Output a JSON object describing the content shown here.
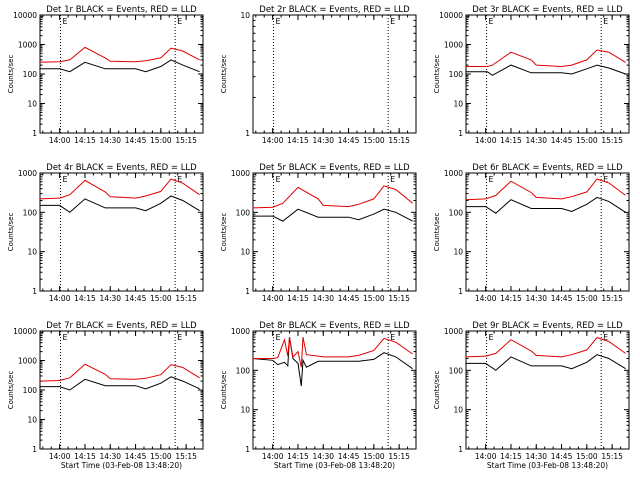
{
  "colors": {
    "events": "#000000",
    "lld": "#e00000",
    "axis": "#000000",
    "background": "#ffffff"
  },
  "chart_data": [
    {
      "type": "line",
      "title": "Det 1r BLACK = Events, RED = LLD",
      "ylabel": "Counts/sec",
      "xlabel": "",
      "yscale": "log",
      "ylim": [
        1,
        10000
      ],
      "yticks": [
        "1",
        "10",
        "100",
        "1000",
        "10000"
      ],
      "xticks": [
        "14:00",
        "14:15",
        "14:30",
        "14:45",
        "15:00",
        "15:15"
      ],
      "markers": [
        {
          "label": "E"
        },
        {
          "label": "E"
        }
      ],
      "series": [
        {
          "name": "Events",
          "x": [
            "13:48",
            "14:00",
            "14:06",
            "14:15",
            "14:27",
            "14:30",
            "14:45",
            "14:51",
            "15:00",
            "15:06",
            "15:13",
            "15:23"
          ],
          "y": [
            150,
            150,
            120,
            250,
            150,
            150,
            150,
            120,
            180,
            300,
            200,
            120
          ]
        },
        {
          "name": "LLD",
          "x": [
            "13:48",
            "14:00",
            "14:06",
            "14:15",
            "14:27",
            "14:30",
            "14:45",
            "14:51",
            "15:00",
            "15:06",
            "15:13",
            "15:23"
          ],
          "y": [
            250,
            260,
            300,
            800,
            350,
            270,
            260,
            280,
            350,
            750,
            600,
            300
          ]
        }
      ]
    },
    {
      "type": "line",
      "title": "Det 2r BLACK = Events, RED = LLD",
      "ylabel": "Counts/sec",
      "xlabel": "",
      "yscale": "log",
      "ylim": [
        1,
        10
      ],
      "yticks": [
        "1",
        "10"
      ],
      "xticks": [
        "14:00",
        "14:15",
        "14:30",
        "14:45",
        "15:00",
        "15:15"
      ],
      "markers": [
        {
          "label": "E"
        },
        {
          "label": "E"
        }
      ],
      "series": []
    },
    {
      "type": "line",
      "title": "Det 3r BLACK = Events, RED = LLD",
      "ylabel": "Counts/sec",
      "xlabel": "",
      "yscale": "log",
      "ylim": [
        1,
        10000
      ],
      "yticks": [
        "1",
        "10",
        "100",
        "1000",
        "10000"
      ],
      "xticks": [
        "14:00",
        "14:15",
        "14:30",
        "14:45",
        "15:00",
        "15:15"
      ],
      "markers": [
        {
          "label": "E"
        },
        {
          "label": "E"
        }
      ],
      "series": [
        {
          "name": "Events",
          "x": [
            "13:48",
            "14:01",
            "14:04",
            "14:15",
            "14:27",
            "14:30",
            "14:45",
            "14:51",
            "15:00",
            "15:06",
            "15:13",
            "15:23"
          ],
          "y": [
            120,
            120,
            90,
            200,
            110,
            110,
            110,
            100,
            150,
            200,
            160,
            100
          ]
        },
        {
          "name": "LLD",
          "x": [
            "13:48",
            "14:01",
            "14:04",
            "14:15",
            "14:27",
            "14:30",
            "14:45",
            "14:51",
            "15:00",
            "15:06",
            "15:13",
            "15:23"
          ],
          "y": [
            180,
            180,
            200,
            550,
            300,
            200,
            180,
            200,
            300,
            650,
            550,
            250
          ]
        }
      ]
    },
    {
      "type": "line",
      "title": "Det 4r BLACK = Events, RED = LLD",
      "ylabel": "Counts/sec",
      "xlabel": "",
      "yscale": "log",
      "ylim": [
        1,
        1000
      ],
      "yticks": [
        "1",
        "10",
        "100",
        "1000"
      ],
      "xticks": [
        "14:00",
        "14:15",
        "14:30",
        "14:45",
        "15:00",
        "15:15"
      ],
      "markers": [
        {
          "label": "E"
        },
        {
          "label": "E"
        }
      ],
      "series": [
        {
          "name": "Events",
          "x": [
            "13:48",
            "14:00",
            "14:06",
            "14:15",
            "14:27",
            "14:30",
            "14:45",
            "14:51",
            "15:00",
            "15:06",
            "15:13",
            "15:23"
          ],
          "y": [
            150,
            150,
            100,
            220,
            130,
            130,
            130,
            110,
            170,
            260,
            200,
            110
          ]
        },
        {
          "name": "LLD",
          "x": [
            "13:48",
            "14:00",
            "14:06",
            "14:15",
            "14:27",
            "14:30",
            "14:45",
            "14:51",
            "15:00",
            "15:06",
            "15:13",
            "15:23"
          ],
          "y": [
            220,
            230,
            280,
            650,
            330,
            250,
            230,
            260,
            340,
            700,
            550,
            280
          ]
        }
      ]
    },
    {
      "type": "line",
      "title": "Det 5r BLACK = Events, RED = LLD",
      "ylabel": "Counts/sec",
      "xlabel": "",
      "yscale": "log",
      "ylim": [
        1,
        1000
      ],
      "yticks": [
        "1",
        "10",
        "100",
        "1000"
      ],
      "xticks": [
        "14:00",
        "14:15",
        "14:30",
        "14:45",
        "15:00",
        "15:15"
      ],
      "markers": [
        {
          "label": "E"
        },
        {
          "label": "E"
        }
      ],
      "series": [
        {
          "name": "Events",
          "x": [
            "13:48",
            "14:00",
            "14:06",
            "14:15",
            "14:27",
            "14:30",
            "14:45",
            "14:51",
            "15:00",
            "15:06",
            "15:13",
            "15:23"
          ],
          "y": [
            80,
            80,
            60,
            120,
            75,
            75,
            75,
            65,
            90,
            120,
            100,
            60
          ]
        },
        {
          "name": "LLD",
          "x": [
            "13:48",
            "14:00",
            "14:06",
            "14:15",
            "14:27",
            "14:30",
            "14:45",
            "14:51",
            "15:00",
            "15:06",
            "15:13",
            "15:23"
          ],
          "y": [
            130,
            135,
            170,
            430,
            220,
            150,
            140,
            160,
            220,
            470,
            380,
            170
          ]
        }
      ]
    },
    {
      "type": "line",
      "title": "Det 6r BLACK = Events, RED = LLD",
      "ylabel": "Counts/sec",
      "xlabel": "",
      "yscale": "log",
      "ylim": [
        1,
        1000
      ],
      "yticks": [
        "1",
        "10",
        "100",
        "1000"
      ],
      "xticks": [
        "14:00",
        "14:15",
        "14:30",
        "14:45",
        "15:00",
        "15:15"
      ],
      "markers": [
        {
          "label": "E"
        },
        {
          "label": "E"
        }
      ],
      "series": [
        {
          "name": "Events",
          "x": [
            "13:48",
            "14:00",
            "14:06",
            "14:15",
            "14:27",
            "14:30",
            "14:45",
            "14:51",
            "15:00",
            "15:06",
            "15:13",
            "15:23"
          ],
          "y": [
            140,
            140,
            95,
            210,
            125,
            125,
            125,
            105,
            160,
            240,
            190,
            100
          ]
        },
        {
          "name": "LLD",
          "x": [
            "13:48",
            "14:00",
            "14:06",
            "14:15",
            "14:27",
            "14:30",
            "14:45",
            "14:51",
            "15:00",
            "15:06",
            "15:13",
            "15:23"
          ],
          "y": [
            210,
            220,
            270,
            620,
            320,
            240,
            220,
            250,
            330,
            700,
            560,
            270
          ]
        }
      ]
    },
    {
      "type": "line",
      "title": "Det 7r BLACK = Events, RED = LLD",
      "ylabel": "Counts/sec",
      "xlabel": "Start Time (03-Feb-08 13:48:20)",
      "yscale": "log",
      "ylim": [
        1,
        10000
      ],
      "yticks": [
        "1",
        "10",
        "100",
        "1000",
        "10000"
      ],
      "xticks": [
        "14:00",
        "14:15",
        "14:30",
        "14:45",
        "15:00",
        "15:15"
      ],
      "markers": [
        {
          "label": "E"
        },
        {
          "label": "E"
        }
      ],
      "series": [
        {
          "name": "Events",
          "x": [
            "13:48",
            "14:00",
            "14:06",
            "14:15",
            "14:27",
            "14:30",
            "14:45",
            "14:51",
            "15:00",
            "15:06",
            "15:13",
            "15:23"
          ],
          "y": [
            130,
            130,
            100,
            230,
            140,
            140,
            140,
            110,
            170,
            280,
            200,
            110
          ]
        },
        {
          "name": "LLD",
          "x": [
            "13:48",
            "14:00",
            "14:06",
            "14:15",
            "14:27",
            "14:30",
            "14:45",
            "14:51",
            "15:00",
            "15:06",
            "15:13",
            "15:23"
          ],
          "y": [
            200,
            210,
            260,
            750,
            340,
            240,
            230,
            250,
            330,
            720,
            580,
            260
          ]
        }
      ]
    },
    {
      "type": "line",
      "title": "Det 8r BLACK = Events, RED = LLD",
      "ylabel": "Counts/sec",
      "xlabel": "Start Time (03-Feb-08 13:48:20)",
      "yscale": "log",
      "ylim": [
        1,
        1000
      ],
      "yticks": [
        "1",
        "10",
        "100",
        "1000"
      ],
      "xticks": [
        "14:00",
        "14:15",
        "14:30",
        "14:45",
        "15:00",
        "15:15"
      ],
      "markers": [
        {
          "label": "E"
        },
        {
          "label": "E"
        }
      ],
      "series": [
        {
          "name": "Events",
          "x": [
            "13:48",
            "14:00",
            "14:03",
            "14:07",
            "14:09",
            "14:10",
            "14:12",
            "14:15",
            "14:17",
            "14:18",
            "14:20",
            "14:27",
            "14:30",
            "14:45",
            "14:51",
            "15:00",
            "15:06",
            "15:13",
            "15:23"
          ],
          "y": [
            200,
            180,
            140,
            160,
            130,
            700,
            200,
            150,
            40,
            180,
            120,
            170,
            170,
            170,
            170,
            190,
            280,
            220,
            110
          ]
        },
        {
          "name": "LLD",
          "x": [
            "13:48",
            "14:00",
            "14:03",
            "14:07",
            "14:09",
            "14:10",
            "14:12",
            "14:15",
            "14:17",
            "14:18",
            "14:20",
            "14:27",
            "14:30",
            "14:45",
            "14:51",
            "15:00",
            "15:06",
            "15:13",
            "15:23"
          ],
          "y": [
            200,
            200,
            210,
            600,
            230,
            700,
            220,
            300,
            120,
            700,
            250,
            230,
            220,
            220,
            240,
            320,
            650,
            520,
            260
          ]
        }
      ]
    },
    {
      "type": "line",
      "title": "Det 9r BLACK = Events, RED = LLD",
      "ylabel": "Counts/sec",
      "xlabel": "Start Time (03-Feb-08 13:48:20)",
      "yscale": "log",
      "ylim": [
        1,
        1000
      ],
      "yticks": [
        "1",
        "10",
        "100",
        "1000"
      ],
      "xticks": [
        "14:00",
        "14:15",
        "14:30",
        "14:45",
        "15:00",
        "15:15"
      ],
      "markers": [
        {
          "label": "E"
        },
        {
          "label": "E"
        }
      ],
      "series": [
        {
          "name": "Events",
          "x": [
            "13:48",
            "14:00",
            "14:06",
            "14:15",
            "14:27",
            "14:30",
            "14:45",
            "14:51",
            "15:00",
            "15:06",
            "15:13",
            "15:23"
          ],
          "y": [
            150,
            150,
            100,
            220,
            130,
            130,
            130,
            110,
            160,
            250,
            200,
            110
          ]
        },
        {
          "name": "LLD",
          "x": [
            "13:48",
            "14:00",
            "14:06",
            "14:15",
            "14:27",
            "14:30",
            "14:45",
            "14:51",
            "15:00",
            "15:06",
            "15:13",
            "15:23"
          ],
          "y": [
            220,
            230,
            270,
            600,
            310,
            240,
            220,
            250,
            330,
            680,
            540,
            270
          ]
        }
      ]
    }
  ]
}
